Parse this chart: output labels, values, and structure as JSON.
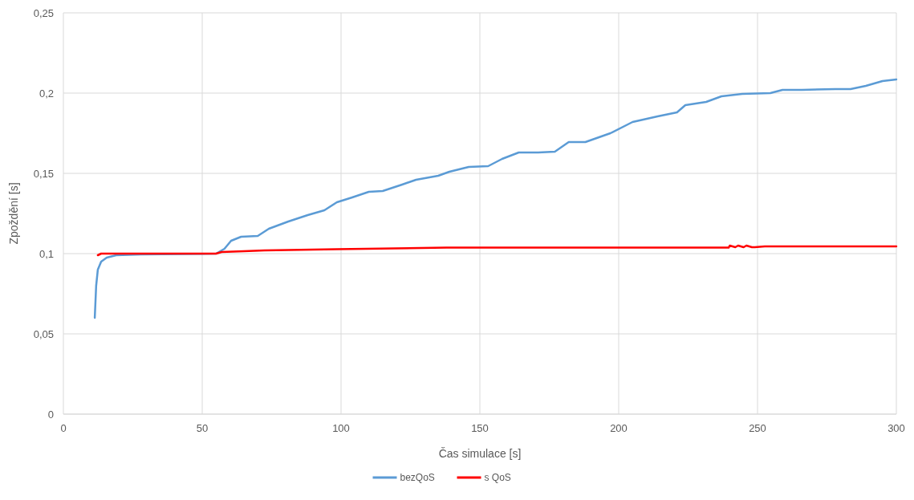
{
  "chart_data": {
    "type": "line",
    "xlabel": "Čas simulace [s]",
    "ylabel": "Zpoždění [s]",
    "xlim": [
      0,
      300
    ],
    "xticks": [
      0,
      50,
      100,
      150,
      200,
      250,
      300
    ],
    "ylim": [
      0,
      0.25
    ],
    "yticks": [
      {
        "value": 0,
        "label": "0"
      },
      {
        "value": 0.05,
        "label": "0,05"
      },
      {
        "value": 0.1,
        "label": "0,1"
      },
      {
        "value": 0.15,
        "label": "0,15"
      },
      {
        "value": 0.2,
        "label": "0,2"
      },
      {
        "value": 0.25,
        "label": "0,25"
      }
    ],
    "grid": true,
    "legend": "bottom",
    "marker": "none",
    "line_style": "solid",
    "series": [
      {
        "name": "bezQoS",
        "color": "#5b9bd5",
        "x": [
          11.3,
          11.8,
          12.4,
          13.6,
          15.6,
          19,
          28,
          55,
          58,
          60.4,
          64,
          70,
          74,
          81,
          88,
          94,
          98.5,
          104,
          110,
          115,
          122,
          127,
          135,
          139,
          146,
          153,
          158,
          164,
          171,
          177,
          182,
          188,
          197,
          205,
          214,
          221,
          224,
          231.5,
          237,
          244.5,
          254.6,
          259,
          266,
          278,
          283.5,
          289,
          295,
          300
        ],
        "values": [
          0.06,
          0.08,
          0.09,
          0.095,
          0.0975,
          0.099,
          0.0995,
          0.1,
          0.103,
          0.108,
          0.1105,
          0.111,
          0.1155,
          0.12,
          0.124,
          0.127,
          0.132,
          0.135,
          0.1385,
          0.139,
          0.143,
          0.146,
          0.1485,
          0.151,
          0.154,
          0.1545,
          0.159,
          0.163,
          0.163,
          0.1635,
          0.1695,
          0.1695,
          0.175,
          0.182,
          0.1855,
          0.188,
          0.1925,
          0.1945,
          0.198,
          0.1995,
          0.2,
          0.202,
          0.202,
          0.2025,
          0.2025,
          0.2045,
          0.2075,
          0.2085
        ]
      },
      {
        "name": "s QoS",
        "color": "#ff0000",
        "x": [
          12.4,
          13.6,
          55,
          57,
          65,
          72.5,
          98.5,
          138,
          239.6,
          240,
          242,
          243,
          245,
          246,
          248,
          249,
          252.6,
          300
        ],
        "values": [
          0.099,
          0.1,
          0.1,
          0.101,
          0.1015,
          0.102,
          0.1028,
          0.1037,
          0.1037,
          0.105,
          0.104,
          0.105,
          0.104,
          0.105,
          0.104,
          0.104,
          0.1045,
          0.1045
        ]
      }
    ]
  }
}
